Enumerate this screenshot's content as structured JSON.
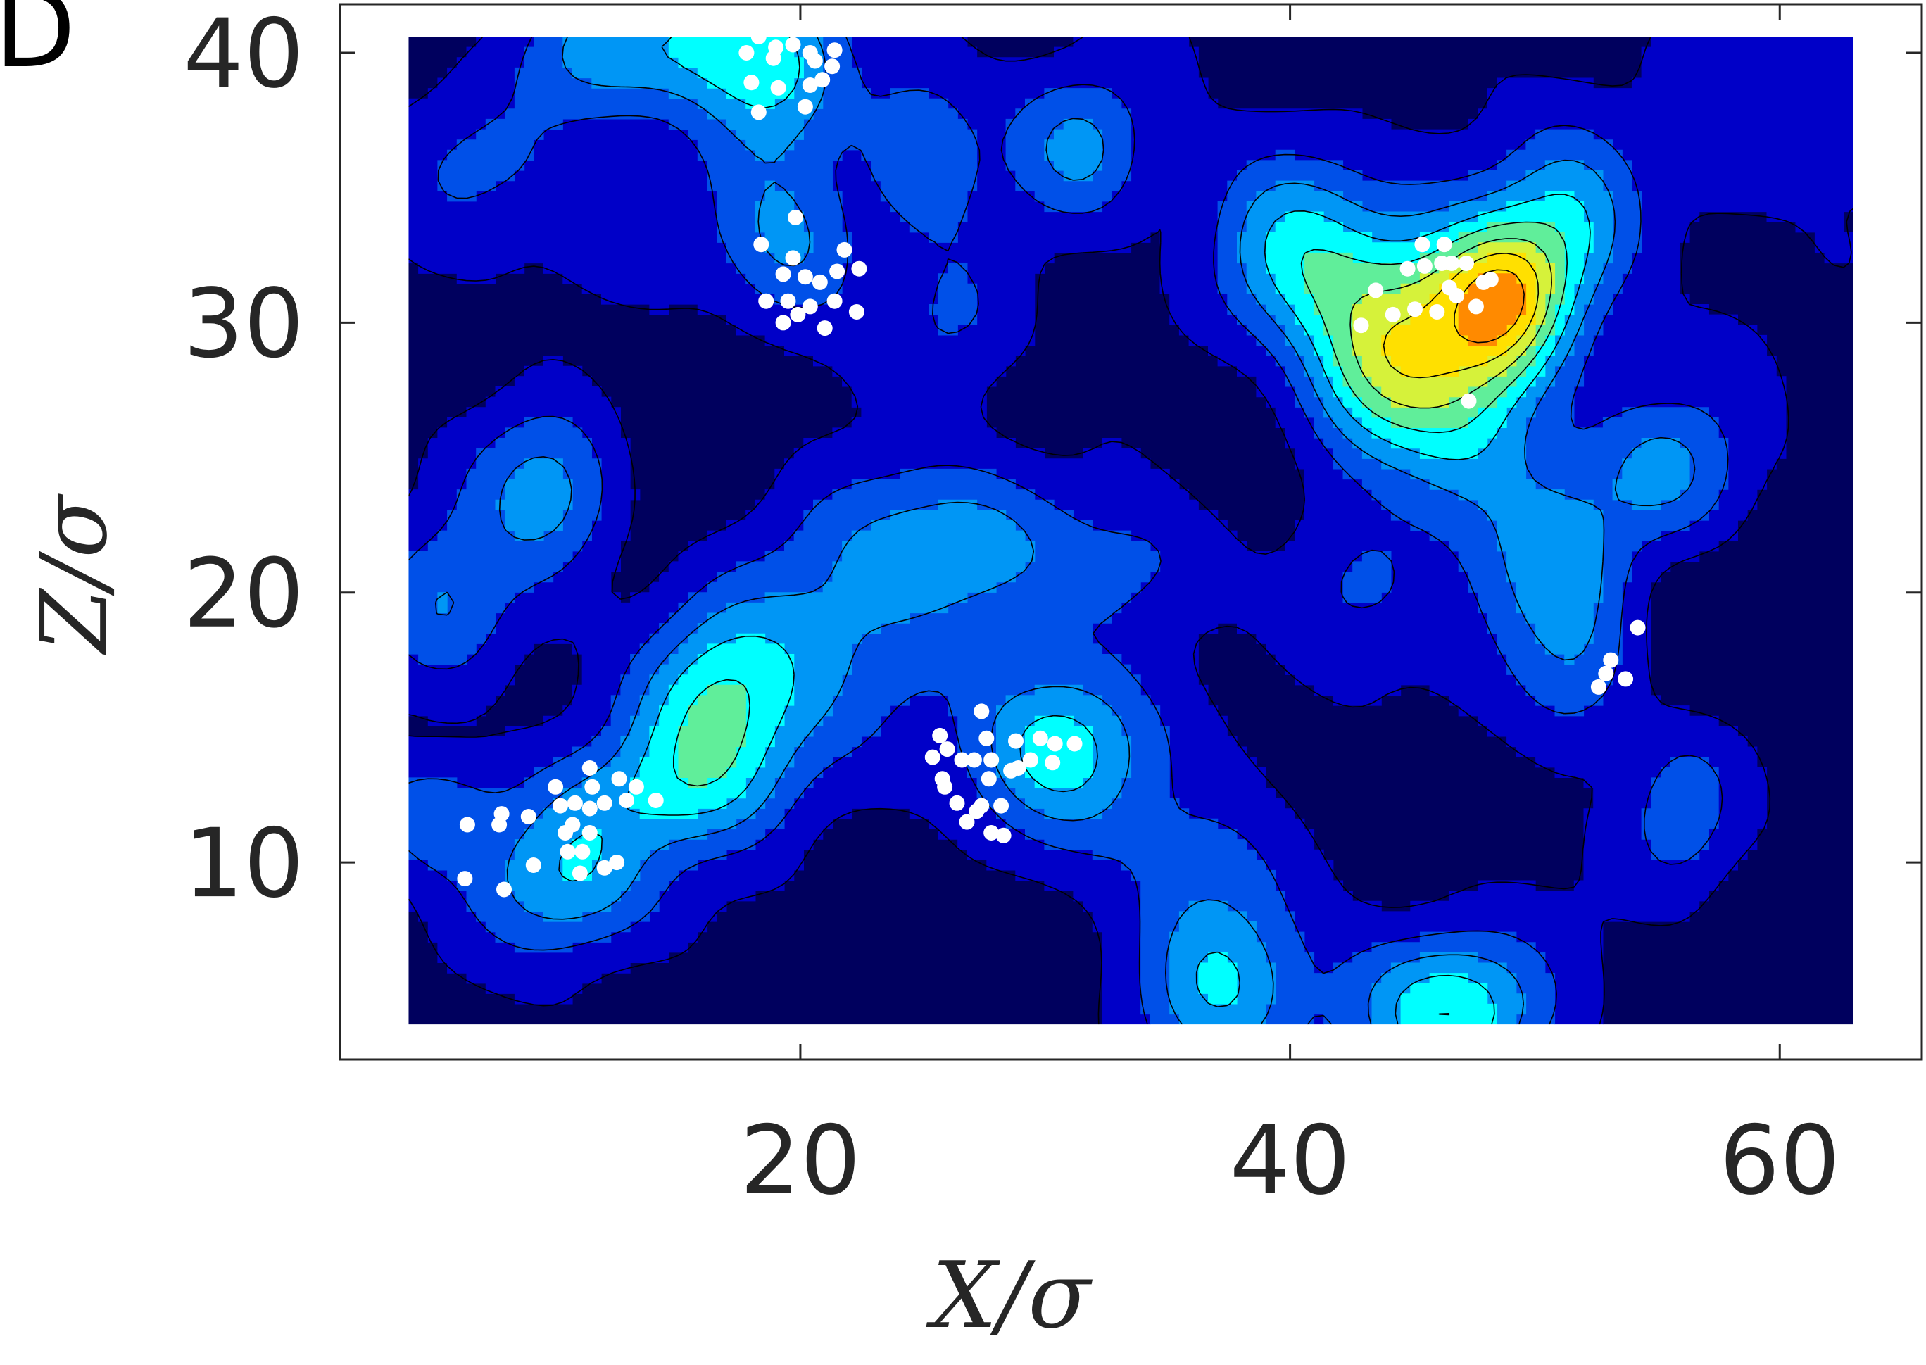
{
  "panel_label": "D",
  "colors": {
    "levels": [
      "#00005e",
      "#0000c8",
      "#0050e8",
      "#0096f5",
      "#00ffff",
      "#60ee9a",
      "#d6f23a",
      "#ffe000",
      "#ff8a00"
    ],
    "contour_line": "#000000",
    "points": "#ffffff",
    "axis": "#262626",
    "background": "#ffffff"
  },
  "chart_data": {
    "type": "heatmap",
    "title": "",
    "xlabel": "X/σ",
    "ylabel": "Z/σ",
    "xlim": [
      4,
      63
    ],
    "ylim": [
      4,
      40.6
    ],
    "frame_xlim": [
      1.2,
      65.8
    ],
    "frame_ylim": [
      2.7,
      41.8
    ],
    "x_ticks": [
      20,
      40,
      60
    ],
    "y_ticks": [
      10,
      20,
      30,
      40
    ],
    "x_tick_labels": [
      "20",
      "40",
      "60"
    ],
    "y_tick_labels": [
      "10",
      "20",
      "30",
      "40"
    ],
    "grid": false,
    "legend": "none",
    "contour_levels": 9,
    "hotspots": [
      {
        "x": 16.5,
        "y": 15.5,
        "amplitude": 1.0,
        "sx": 2.4,
        "sy": 2.6
      },
      {
        "x": 10.5,
        "y": 9.3,
        "amplitude": 0.75,
        "sx": 2.6,
        "sy": 1.9
      },
      {
        "x": 13.5,
        "y": 12.5,
        "amplitude": 0.5,
        "sx": 3.5,
        "sy": 1.6
      },
      {
        "x": 21.0,
        "y": 18.5,
        "amplitude": 0.5,
        "sx": 3.5,
        "sy": 3.0
      },
      {
        "x": 24.0,
        "y": 22.5,
        "amplitude": 0.4,
        "sx": 3.0,
        "sy": 2.2
      },
      {
        "x": 30.5,
        "y": 14.2,
        "amplitude": 1.0,
        "sx": 2.6,
        "sy": 2.3
      },
      {
        "x": 37.0,
        "y": 5.5,
        "amplitude": 0.85,
        "sx": 2.4,
        "sy": 2.4
      },
      {
        "x": 46.5,
        "y": 4.5,
        "amplitude": 1.0,
        "sx": 2.8,
        "sy": 2.0
      },
      {
        "x": 18.8,
        "y": 39.2,
        "amplitude": 0.85,
        "sx": 2.2,
        "sy": 2.4
      },
      {
        "x": 19.5,
        "y": 33.0,
        "amplitude": 0.55,
        "sx": 2.0,
        "sy": 2.2
      },
      {
        "x": 11.5,
        "y": 40.0,
        "amplitude": 0.6,
        "sx": 2.4,
        "sy": 1.8
      },
      {
        "x": 16.0,
        "y": 40.5,
        "amplitude": 0.5,
        "sx": 2.0,
        "sy": 1.5
      },
      {
        "x": 25.0,
        "y": 36.5,
        "amplitude": 0.5,
        "sx": 1.8,
        "sy": 2.4
      },
      {
        "x": 26.5,
        "y": 30.0,
        "amplitude": 0.35,
        "sx": 2.0,
        "sy": 2.0
      },
      {
        "x": 31.5,
        "y": 36.5,
        "amplitude": 0.6,
        "sx": 2.0,
        "sy": 2.0
      },
      {
        "x": 47.0,
        "y": 28.0,
        "amplitude": 0.9,
        "sx": 2.5,
        "sy": 4.0
      },
      {
        "x": 48.8,
        "y": 30.8,
        "amplitude": 1.0,
        "sx": 1.7,
        "sy": 2.0
      },
      {
        "x": 43.2,
        "y": 27.8,
        "amplitude": 0.85,
        "sx": 2.2,
        "sy": 2.2
      },
      {
        "x": 40.0,
        "y": 33.0,
        "amplitude": 0.7,
        "sx": 2.5,
        "sy": 2.5
      },
      {
        "x": 51.5,
        "y": 33.5,
        "amplitude": 0.7,
        "sx": 2.0,
        "sy": 2.5
      },
      {
        "x": 44.0,
        "y": 31.0,
        "amplitude": 0.55,
        "sx": 4.0,
        "sy": 2.2
      },
      {
        "x": 51.0,
        "y": 20.5,
        "amplitude": 0.65,
        "sx": 2.2,
        "sy": 2.6
      },
      {
        "x": 55.5,
        "y": 24.5,
        "amplitude": 0.6,
        "sx": 2.2,
        "sy": 2.0
      },
      {
        "x": 56.0,
        "y": 12.0,
        "amplitude": 0.5,
        "sx": 1.6,
        "sy": 2.2
      },
      {
        "x": 5.5,
        "y": 19.5,
        "amplitude": 0.5,
        "sx": 2.0,
        "sy": 2.2
      },
      {
        "x": 5.0,
        "y": 11.8,
        "amplitude": 0.5,
        "sx": 1.8,
        "sy": 1.5
      },
      {
        "x": 10.0,
        "y": 23.0,
        "amplitude": 0.45,
        "sx": 2.0,
        "sy": 2.0
      },
      {
        "x": 9.0,
        "y": 25.0,
        "amplitude": 0.35,
        "sx": 2.4,
        "sy": 2.0
      },
      {
        "x": 27.5,
        "y": 21.5,
        "amplitude": 0.4,
        "sx": 2.5,
        "sy": 2.0
      },
      {
        "x": 34.0,
        "y": 21.0,
        "amplitude": 0.4,
        "sx": 2.5,
        "sy": 2.0
      },
      {
        "x": 52.0,
        "y": 16.5,
        "amplitude": 0.45,
        "sx": 2.0,
        "sy": 2.0
      },
      {
        "x": 42.5,
        "y": 20.0,
        "amplitude": 0.3,
        "sx": 2.0,
        "sy": 2.0
      },
      {
        "x": 36.5,
        "y": 10.0,
        "amplitude": 0.3,
        "sx": 2.5,
        "sy": 2.0
      },
      {
        "x": 62.5,
        "y": 38.5,
        "amplitude": 0.3,
        "sx": 2.0,
        "sy": 2.0
      },
      {
        "x": 57.5,
        "y": 36.0,
        "amplitude": 0.25,
        "sx": 2.0,
        "sy": 2.0
      },
      {
        "x": 13.0,
        "y": 33.5,
        "amplitude": 0.3,
        "sx": 2.5,
        "sy": 2.0
      },
      {
        "x": 6.5,
        "y": 36.0,
        "amplitude": 0.3,
        "sx": 2.5,
        "sy": 2.0
      }
    ],
    "lows": [
      {
        "x": 28.5,
        "y": 6.5,
        "amplitude": 0.25,
        "sx": 2.0,
        "sy": 2.0
      },
      {
        "x": 38.5,
        "y": 27.5,
        "amplitude": 0.2,
        "sx": 3.0,
        "sy": 3.0
      },
      {
        "x": 15.0,
        "y": 25.0,
        "amplitude": 0.2,
        "sx": 3.0,
        "sy": 3.0
      },
      {
        "x": 55.0,
        "y": 17.0,
        "amplitude": 0.2,
        "sx": 3.0,
        "sy": 3.0
      }
    ],
    "points": [
      [
        17.8,
        40.0
      ],
      [
        18.3,
        40.6
      ],
      [
        19.0,
        40.2
      ],
      [
        19.7,
        40.3
      ],
      [
        20.4,
        40.0
      ],
      [
        21.4,
        40.1
      ],
      [
        18.9,
        39.8
      ],
      [
        20.6,
        39.7
      ],
      [
        21.3,
        39.5
      ],
      [
        18.0,
        38.9
      ],
      [
        19.1,
        38.7
      ],
      [
        20.4,
        38.8
      ],
      [
        20.9,
        39.0
      ],
      [
        18.3,
        37.8
      ],
      [
        20.2,
        38.0
      ],
      [
        19.8,
        33.9
      ],
      [
        18.4,
        32.9
      ],
      [
        19.7,
        32.4
      ],
      [
        21.8,
        32.7
      ],
      [
        19.3,
        31.8
      ],
      [
        20.2,
        31.7
      ],
      [
        20.8,
        31.5
      ],
      [
        21.5,
        31.9
      ],
      [
        22.4,
        32.0
      ],
      [
        18.6,
        30.8
      ],
      [
        19.5,
        30.8
      ],
      [
        20.4,
        30.6
      ],
      [
        21.4,
        30.8
      ],
      [
        22.3,
        30.4
      ],
      [
        19.9,
        30.3
      ],
      [
        19.3,
        30.0
      ],
      [
        21.0,
        29.8
      ],
      [
        45.4,
        32.9
      ],
      [
        46.3,
        32.9
      ],
      [
        44.8,
        32.0
      ],
      [
        45.5,
        32.1
      ],
      [
        46.2,
        32.2
      ],
      [
        46.6,
        32.2
      ],
      [
        47.2,
        32.2
      ],
      [
        43.5,
        31.2
      ],
      [
        46.5,
        31.3
      ],
      [
        47.9,
        31.5
      ],
      [
        48.2,
        31.6
      ],
      [
        46.8,
        31.0
      ],
      [
        44.2,
        30.3
      ],
      [
        45.1,
        30.5
      ],
      [
        46.0,
        30.4
      ],
      [
        42.9,
        29.9
      ],
      [
        47.6,
        30.6
      ],
      [
        47.3,
        27.1
      ],
      [
        54.2,
        18.7
      ],
      [
        53.1,
        17.5
      ],
      [
        52.9,
        17.0
      ],
      [
        53.7,
        16.8
      ],
      [
        52.6,
        16.5
      ],
      [
        27.4,
        15.6
      ],
      [
        25.7,
        14.7
      ],
      [
        26.0,
        14.2
      ],
      [
        27.6,
        14.6
      ],
      [
        28.8,
        14.5
      ],
      [
        29.8,
        14.6
      ],
      [
        30.4,
        14.4
      ],
      [
        31.2,
        14.4
      ],
      [
        25.4,
        13.9
      ],
      [
        26.6,
        13.8
      ],
      [
        27.1,
        13.8
      ],
      [
        27.8,
        13.8
      ],
      [
        29.4,
        13.8
      ],
      [
        30.3,
        13.7
      ],
      [
        25.8,
        13.1
      ],
      [
        27.7,
        13.1
      ],
      [
        28.6,
        13.4
      ],
      [
        28.9,
        13.5
      ],
      [
        25.9,
        12.8
      ],
      [
        26.4,
        12.2
      ],
      [
        27.4,
        12.1
      ],
      [
        28.2,
        12.1
      ],
      [
        27.2,
        11.9
      ],
      [
        26.8,
        11.5
      ],
      [
        27.8,
        11.1
      ],
      [
        28.3,
        11.0
      ],
      [
        11.4,
        13.5
      ],
      [
        10.0,
        12.8
      ],
      [
        12.6,
        13.1
      ],
      [
        11.5,
        12.8
      ],
      [
        13.3,
        12.8
      ],
      [
        10.2,
        12.1
      ],
      [
        10.8,
        12.2
      ],
      [
        11.4,
        12.0
      ],
      [
        12.0,
        12.2
      ],
      [
        12.9,
        12.3
      ],
      [
        14.1,
        12.3
      ],
      [
        7.8,
        11.8
      ],
      [
        8.9,
        11.7
      ],
      [
        6.4,
        11.4
      ],
      [
        7.7,
        11.4
      ],
      [
        10.7,
        11.4
      ],
      [
        10.4,
        11.1
      ],
      [
        11.4,
        11.1
      ],
      [
        10.5,
        10.4
      ],
      [
        11.1,
        10.4
      ],
      [
        9.1,
        9.9
      ],
      [
        12.5,
        10.0
      ],
      [
        11.0,
        9.6
      ],
      [
        12.0,
        9.8
      ],
      [
        6.3,
        9.4
      ],
      [
        7.9,
        9.0
      ]
    ]
  }
}
